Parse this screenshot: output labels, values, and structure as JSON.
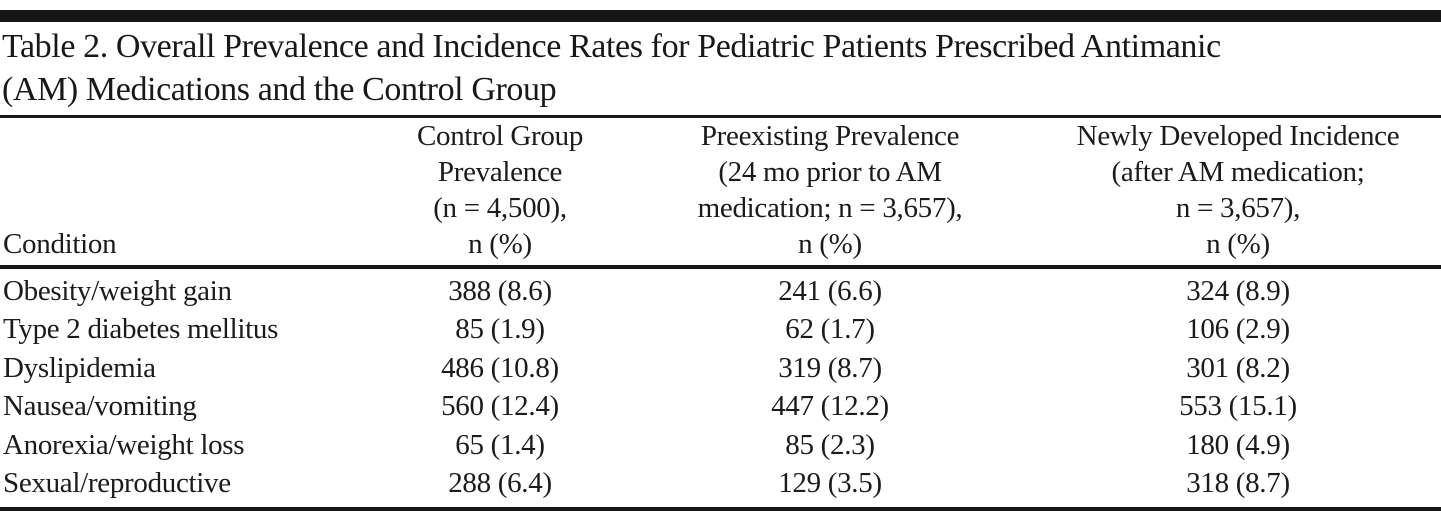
{
  "table": {
    "title": "Table 2. Overall Prevalence and Incidence Rates for Pediatric Patients Prescribed Antimanic (AM) Medications and the Control Group",
    "title_lines": [
      "Table 2. Overall Prevalence and Incidence Rates for Pediatric Patients Prescribed Antimanic",
      "(AM) Medications and the Control Group"
    ],
    "columns": [
      {
        "lines": [
          "Condition"
        ]
      },
      {
        "lines": [
          "Control Group",
          "Prevalence",
          "(n = 4,500),",
          "n (%)"
        ]
      },
      {
        "lines": [
          "Preexisting Prevalence",
          "(24 mo prior to AM",
          "medication; n = 3,657),",
          "n (%)"
        ]
      },
      {
        "lines": [
          "Newly Developed Incidence",
          "(after AM medication;",
          "n = 3,657),",
          "n (%)"
        ]
      }
    ],
    "rows": [
      {
        "condition": "Obesity/weight gain",
        "values": [
          "388 (8.6)",
          "241 (6.6)",
          "324 (8.9)"
        ]
      },
      {
        "condition": "Type 2 diabetes mellitus",
        "values": [
          "85 (1.9)",
          "62 (1.7)",
          "106 (2.9)"
        ]
      },
      {
        "condition": "Dyslipidemia",
        "values": [
          "486 (10.8)",
          "319 (8.7)",
          "301 (8.2)"
        ]
      },
      {
        "condition": "Nausea/vomiting",
        "values": [
          "560 (12.4)",
          "447 (12.2)",
          "553 (15.1)"
        ]
      },
      {
        "condition": "Anorexia/weight loss",
        "values": [
          "65 (1.4)",
          "85 (2.3)",
          "180 (4.9)"
        ]
      },
      {
        "condition": "Sexual/reproductive",
        "values": [
          "288 (6.4)",
          "129 (3.5)",
          "318 (8.7)"
        ]
      }
    ],
    "colors": {
      "text": "#1b1b1b",
      "rule": "#181818",
      "background": "#ffffff"
    }
  }
}
